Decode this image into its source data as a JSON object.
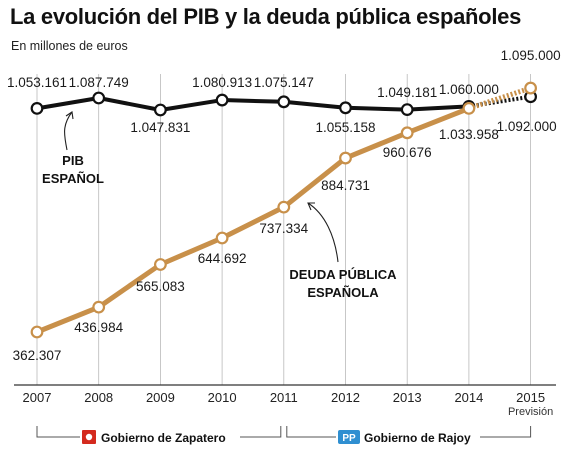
{
  "header": {
    "title": "La evolución del PIB y la deuda pública españoles",
    "subtitle": "En millones de euros"
  },
  "chart_data": {
    "type": "line",
    "title": "La evolución del PIB y la deuda pública españoles",
    "subtitle": "En millones de euros",
    "categories": [
      "2007",
      "2008",
      "2009",
      "2010",
      "2011",
      "2012",
      "2013",
      "2014",
      "2015"
    ],
    "x_sublabels": {
      "2015": "Previsión"
    },
    "ylim": [
      300000,
      1100000
    ],
    "grid": "vertical",
    "series": [
      {
        "name": "PIB ESPAÑOL",
        "name_lines": [
          "PIB",
          "ESPAÑOL"
        ],
        "color": "#111111",
        "values": [
          1053161,
          1087749,
          1047831,
          1080913,
          1075147,
          1055158,
          1049181,
          1060000,
          1092000
        ],
        "labels": [
          "1.053.161",
          "1.087.749",
          "1.047.831",
          "1.080.913",
          "1.075.147",
          "1.055.158",
          "1.049.181",
          "1.060.000",
          "1.092.000"
        ],
        "forecast_from_index": 7
      },
      {
        "name": "DEUDA PÚBLICA ESPAÑOLA",
        "name_lines": [
          "DEUDA PÚBLICA",
          "ESPAÑOLA"
        ],
        "color": "#c8904a",
        "values": [
          362307,
          436984,
          565083,
          644692,
          737334,
          884731,
          960676,
          1033958,
          1095000
        ],
        "labels": [
          "362.307",
          "436.984",
          "565.083",
          "644.692",
          "737.334",
          "884.731",
          "960.676",
          "1.033.958",
          "1.095.000"
        ],
        "forecast_from_index": 7
      }
    ],
    "periods": [
      {
        "label": "Gobierno de Zapatero",
        "from": "2007",
        "to": "2011",
        "logo": "psoe-logo",
        "logo_color": "#d42a1e"
      },
      {
        "label": "Gobierno de Rajoy",
        "from": "2011",
        "to": "2015",
        "logo": "pp-logo",
        "logo_color": "#2f8fd1",
        "logo_text": "PP"
      }
    ]
  }
}
